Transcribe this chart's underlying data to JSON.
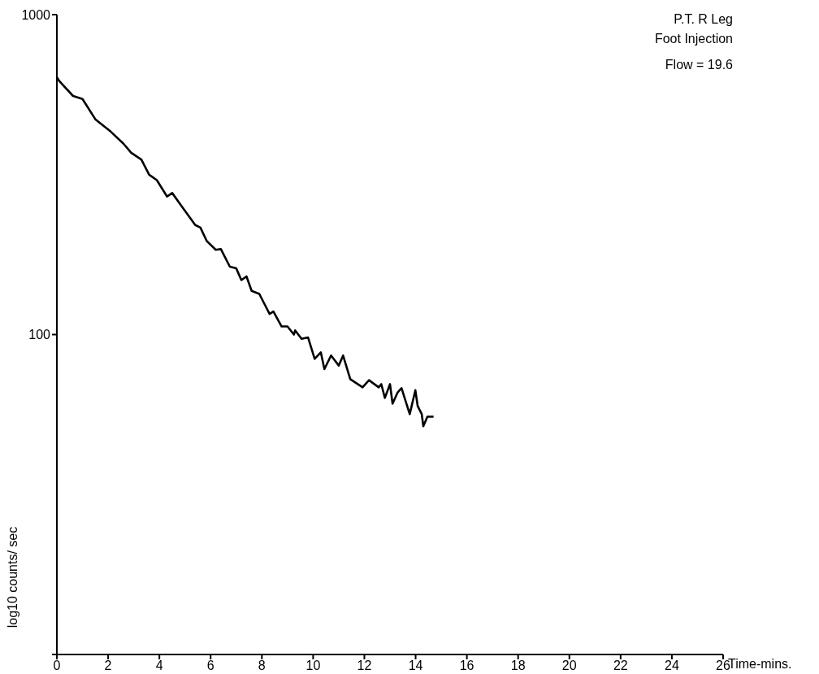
{
  "chart_data": {
    "type": "line",
    "title": "P.T.  R Leg",
    "subtitle": "Foot Injection",
    "annotations": [
      "Flow = 19.6"
    ],
    "xlabel": "Time-mins.",
    "ylabel": "log10 counts/ sec",
    "log": "y",
    "marker": "none",
    "line_style": "solid",
    "xlim": [
      0,
      26
    ],
    "xticks": [
      0,
      2,
      4,
      6,
      8,
      10,
      12,
      14,
      16,
      18,
      20,
      22,
      24,
      26
    ],
    "ylim": [
      10,
      1000
    ],
    "yticks": [
      {
        "value": 10,
        "label": null
      },
      100,
      1000
    ],
    "series": [
      {
        "color": "#000000",
        "x": [
          0,
          0.1,
          0.63,
          1.0,
          1.5,
          2.1,
          2.6,
          2.9,
          3.3,
          3.6,
          3.9,
          4.3,
          4.5,
          4.9,
          5.4,
          5.6,
          5.85,
          6.2,
          6.4,
          6.75,
          7.0,
          7.2,
          7.4,
          7.6,
          7.9,
          8.3,
          8.45,
          8.77,
          9.0,
          9.25,
          9.3,
          9.55,
          9.8,
          10.06,
          10.3,
          10.44,
          10.7,
          11.0,
          11.17,
          11.45,
          11.93,
          12.18,
          12.56,
          12.66,
          12.8,
          13.0,
          13.1,
          13.3,
          13.45,
          13.77,
          13.99,
          14.08,
          14.24,
          14.3,
          14.46,
          14.7
        ],
        "values": [
          638,
          619,
          557,
          545,
          471,
          431,
          395,
          370,
          352,
          316,
          304,
          270,
          277,
          250,
          220,
          216,
          196,
          184,
          185,
          163,
          161,
          148,
          152,
          137,
          134,
          116,
          118,
          106,
          106,
          100,
          103,
          97,
          98,
          84,
          88,
          78,
          86,
          80,
          86,
          72.5,
          68.4,
          72,
          68.4,
          70,
          63.4,
          70,
          60.8,
          66,
          68,
          56.4,
          67,
          59.8,
          56.4,
          51.7,
          55.4,
          55.4
        ]
      }
    ]
  }
}
